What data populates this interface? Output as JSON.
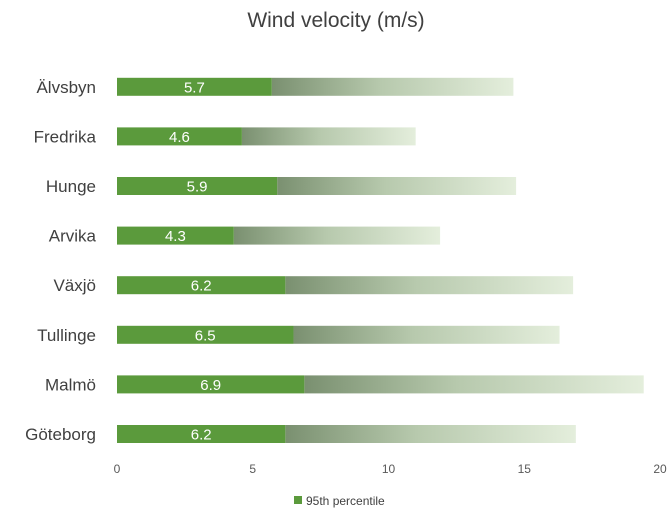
{
  "chart_data": {
    "type": "bar",
    "orientation": "horizontal",
    "title": "Wind velocity (m/s)",
    "categories": [
      "Älvsbyn",
      "Fredrika",
      "Hunge",
      "Arvika",
      "Växjö",
      "Tullinge",
      "Malmö",
      "Göteborg"
    ],
    "series": [
      {
        "name": "95th percentile",
        "values": [
          5.7,
          4.6,
          5.9,
          4.3,
          6.2,
          6.5,
          6.9,
          6.2
        ],
        "labels": [
          "5.7",
          "4.6",
          "5.9",
          "4.3",
          "6.2",
          "6.5",
          "6.9",
          "6.2"
        ],
        "color": "#5b9a3c"
      },
      {
        "values": [
          14.6,
          11.0,
          14.7,
          11.9,
          16.8,
          16.3,
          19.4,
          16.9
        ],
        "color": "#dbe8d0"
      }
    ],
    "xlim": [
      0,
      20
    ],
    "xticks": [
      "0",
      "5",
      "10",
      "15",
      "20"
    ],
    "grid": false,
    "legend_position": "bottom"
  }
}
